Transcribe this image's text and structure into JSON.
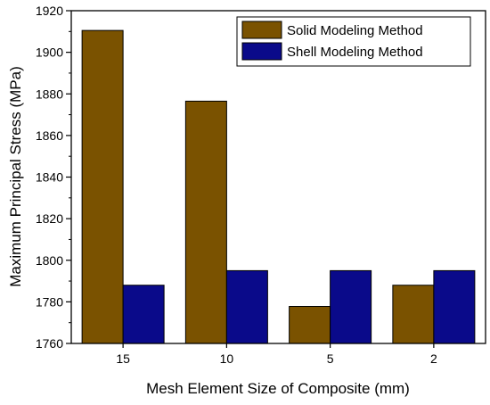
{
  "chart_data": {
    "type": "bar",
    "title": "",
    "xlabel": "Mesh Element Size of Composite (mm)",
    "ylabel": "Maximum Principal Stress (MPa)",
    "categories": [
      "15",
      "10",
      "5",
      "2"
    ],
    "ylim": [
      1760,
      1920
    ],
    "yticks": [
      1760,
      1780,
      1800,
      1820,
      1840,
      1860,
      1880,
      1900,
      1920
    ],
    "legend_position": "top-right",
    "grid": false,
    "series": [
      {
        "name": "Solid Modeling Method",
        "color": "#7a5200",
        "values": [
          1910.5,
          1876.5,
          1777.8,
          1788
        ]
      },
      {
        "name": "Shell Modeling Method",
        "color": "#0a0a8a",
        "values": [
          1788,
          1795,
          1795,
          1795
        ]
      }
    ]
  }
}
